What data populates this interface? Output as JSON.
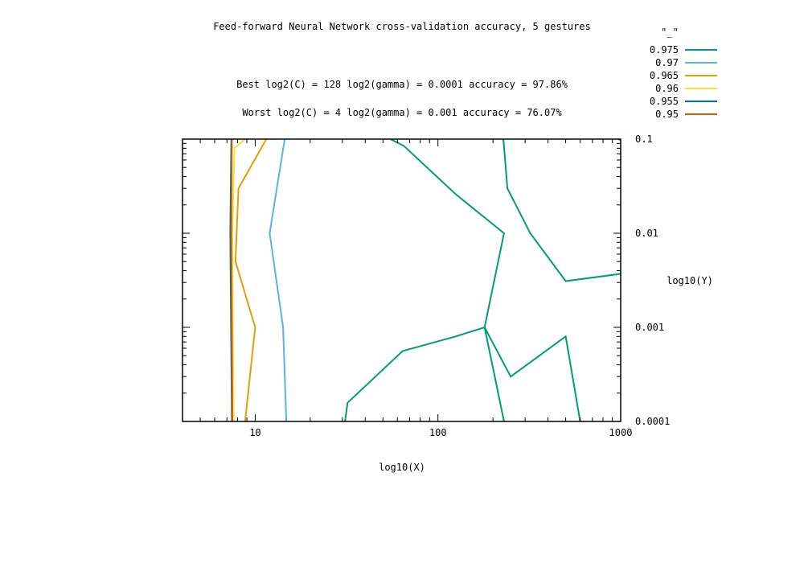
{
  "chart_data": {
    "type": "contour",
    "title": "Feed-forward Neural Network cross-validation accuracy, 5 gestures",
    "annotations": [
      "Best log2(C) = 128  log2(gamma) = 0.0001  accuracy = 97.86%",
      "Worst log2(C) = 4  log2(gamma) = 0.001   accuracy = 76.07%"
    ],
    "xlabel": "log10(X)",
    "ylabel": "log10(Y)",
    "x_scale": "log",
    "y_scale": "log",
    "xlim": [
      4,
      1000
    ],
    "ylim": [
      0.0001,
      0.1
    ],
    "x_ticks": [
      {
        "value": 10,
        "label": "10"
      },
      {
        "value": 100,
        "label": "100"
      },
      {
        "value": 1000,
        "label": "1000"
      }
    ],
    "y_ticks": [
      {
        "value": 0.1,
        "label": "0.1"
      },
      {
        "value": 0.01,
        "label": "0.01"
      },
      {
        "value": 0.001,
        "label": "0.001"
      },
      {
        "value": 0.0001,
        "label": "0.0001"
      }
    ],
    "y_axis_side": "right",
    "grid": false,
    "legend": {
      "title": "\"_\"",
      "position": "top-right"
    },
    "series": [
      {
        "name": "0.975",
        "color": "#009e73",
        "lines": [
          [
            [
              55,
              0.1
            ],
            [
              65,
              0.085
            ],
            [
              125,
              0.026
            ],
            [
              230,
              0.01
            ],
            [
              180,
              0.001
            ],
            [
              230,
              0.0001
            ]
          ],
          [
            [
              228,
              0.1
            ],
            [
              240,
              0.03
            ],
            [
              320,
              0.01
            ],
            [
              500,
              0.0031
            ],
            [
              1000,
              0.0037
            ]
          ],
          [
            [
              31,
              0.0001
            ],
            [
              32,
              0.000158
            ],
            [
              64,
              0.00056
            ],
            [
              125,
              0.0008
            ],
            [
              180,
              0.001
            ],
            [
              250,
              0.0003
            ],
            [
              500,
              0.0008
            ],
            [
              600,
              0.0001
            ]
          ],
          [
            [
              970,
              0.1
            ],
            [
              1000,
              0.097
            ]
          ]
        ]
      },
      {
        "name": "0.97",
        "color": "#56b4e9",
        "lines": [
          [
            [
              14.5,
              0.1
            ],
            [
              12,
              0.01
            ],
            [
              14.2,
              0.001
            ],
            [
              14.8,
              0.0001
            ]
          ]
        ]
      },
      {
        "name": "0.965",
        "color": "#e69f00",
        "lines": [
          [
            [
              11.5,
              0.1
            ],
            [
              8.1,
              0.03
            ],
            [
              7.8,
              0.005
            ],
            [
              10,
              0.001
            ],
            [
              8.8,
              0.0001
            ]
          ]
        ]
      },
      {
        "name": "0.96",
        "color": "#f0e442",
        "lines": [
          [
            [
              8.8,
              0.1
            ],
            [
              7.7,
              0.08
            ],
            [
              7.5,
              0.01
            ],
            [
              7.6,
              0.0001
            ]
          ]
        ]
      },
      {
        "name": "0.955",
        "color": "#0072b2",
        "lines": [
          [
            [
              7.4,
              0.1
            ],
            [
              7.3,
              0.01
            ],
            [
              7.45,
              0.0001
            ]
          ]
        ]
      },
      {
        "name": "0.95",
        "color": "#d55e00",
        "lines": [
          [
            [
              7.45,
              0.1
            ],
            [
              7.4,
              0.01
            ],
            [
              7.5,
              0.0001
            ]
          ]
        ]
      }
    ]
  }
}
